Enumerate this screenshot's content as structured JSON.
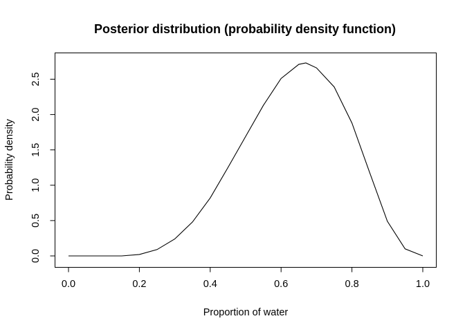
{
  "chart_data": {
    "type": "line",
    "title": "Posterior distribution (probability density function)",
    "xlabel": "Proportion of water",
    "ylabel": "Probability density",
    "xlim": [
      0.0,
      1.0
    ],
    "ylim": [
      0.0,
      2.7
    ],
    "x_ticks": [
      0.0,
      0.2,
      0.4,
      0.6,
      0.8,
      1.0
    ],
    "x_tick_labels": [
      "0.0",
      "0.2",
      "0.4",
      "0.6",
      "0.8",
      "1.0"
    ],
    "y_ticks": [
      0.0,
      0.5,
      1.0,
      1.5,
      2.0,
      2.5
    ],
    "y_tick_labels": [
      "0.0",
      "0.5",
      "1.0",
      "1.5",
      "2.0",
      "2.5"
    ],
    "grid": false,
    "legend": "none",
    "line_color": "#000000",
    "series": [
      {
        "x": [
          0.0,
          0.05,
          0.1,
          0.15,
          0.2,
          0.25,
          0.3,
          0.35,
          0.4,
          0.45,
          0.5,
          0.55,
          0.6,
          0.65,
          0.67,
          0.7,
          0.75,
          0.8,
          0.85,
          0.9,
          0.95,
          1.0
        ],
        "y": [
          0.0,
          0.0,
          0.0,
          0.0,
          0.02,
          0.09,
          0.24,
          0.48,
          0.82,
          1.25,
          1.69,
          2.13,
          2.51,
          2.71,
          2.73,
          2.66,
          2.39,
          1.88,
          1.18,
          0.49,
          0.1,
          0.0
        ]
      }
    ]
  }
}
